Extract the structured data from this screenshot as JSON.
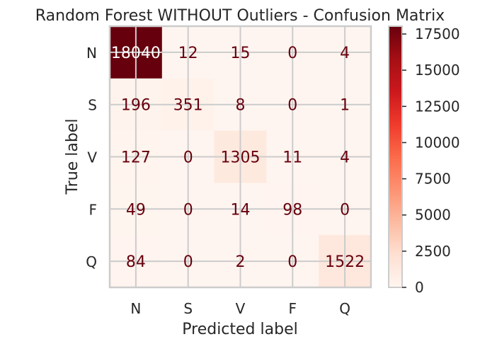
{
  "chart_data": {
    "type": "heatmap",
    "title": "Random Forest WITHOUT Outliers - Confusion Matrix",
    "xlabel": "Predicted label",
    "ylabel": "True label",
    "x_categories": [
      "N",
      "S",
      "V",
      "F",
      "Q"
    ],
    "y_categories": [
      "N",
      "S",
      "V",
      "F",
      "Q"
    ],
    "values": [
      [
        18040,
        12,
        15,
        0,
        4
      ],
      [
        196,
        351,
        8,
        0,
        1
      ],
      [
        127,
        0,
        1305,
        11,
        4
      ],
      [
        49,
        0,
        14,
        98,
        0
      ],
      [
        84,
        0,
        2,
        0,
        1522
      ]
    ],
    "colormap": "Reds",
    "colorbar": {
      "range": [
        0,
        18040
      ],
      "ticks": [
        0,
        2500,
        5000,
        7500,
        10000,
        12500,
        15000,
        17500
      ],
      "tick_labels": [
        "0",
        "2500",
        "5000",
        "7500",
        "10000",
        "12500",
        "15000",
        "17500"
      ]
    },
    "grid": true,
    "colors": {
      "text_dark": "#67000d",
      "text_light": "#ffffff",
      "grid": "#cccccc",
      "axis_text": "#262626"
    }
  }
}
